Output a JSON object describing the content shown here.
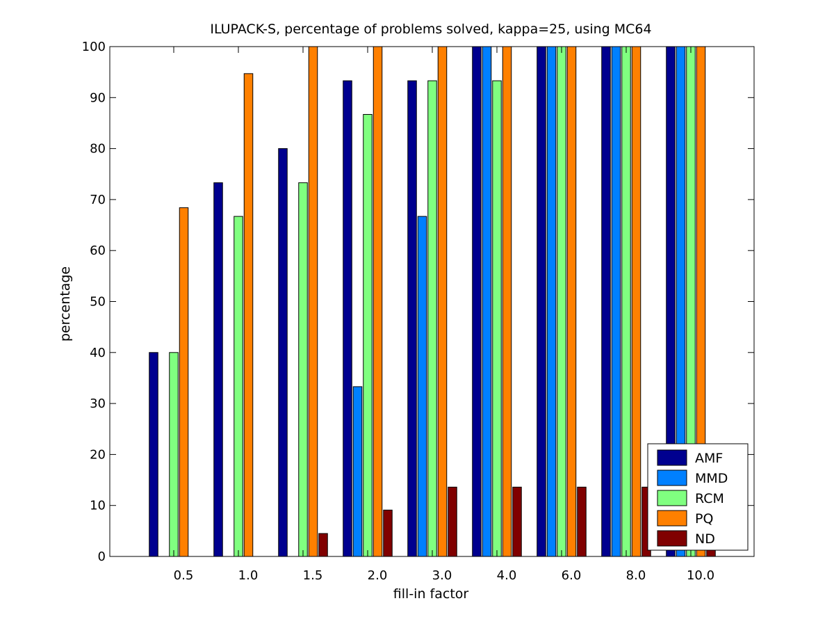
{
  "chart_data": {
    "type": "bar",
    "title": "ILUPACK-S, percentage of problems solved, kappa=25, using MC64",
    "xlabel": "fill-in factor",
    "ylabel": "percentage",
    "ylim": [
      0,
      100
    ],
    "yticks": [
      0,
      10,
      20,
      30,
      40,
      50,
      60,
      70,
      80,
      90,
      100
    ],
    "categories": [
      "0.5",
      "1.0",
      "1.5",
      "2.0",
      "3.0",
      "4.0",
      "6.0",
      "8.0",
      "10.0"
    ],
    "grid": false,
    "legend_position": "bottom-right",
    "series": [
      {
        "name": "AMF",
        "color": "#00008f",
        "values": [
          40,
          73.3,
          80,
          93.3,
          93.3,
          100,
          100,
          100,
          100
        ]
      },
      {
        "name": "MMD",
        "color": "#0080ff",
        "values": [
          0,
          0,
          0,
          33.3,
          66.7,
          100,
          100,
          100,
          100
        ]
      },
      {
        "name": "RCM",
        "color": "#80ff80",
        "values": [
          40,
          66.7,
          73.3,
          86.7,
          93.3,
          93.3,
          100,
          100,
          100
        ]
      },
      {
        "name": "PQ",
        "color": "#ff8000",
        "values": [
          68.4,
          94.7,
          100,
          100,
          100,
          100,
          100,
          100,
          100
        ]
      },
      {
        "name": "ND",
        "color": "#800000",
        "values": [
          0,
          0,
          4.5,
          9.1,
          13.6,
          13.6,
          13.6,
          13.6,
          13.6
        ]
      }
    ]
  }
}
